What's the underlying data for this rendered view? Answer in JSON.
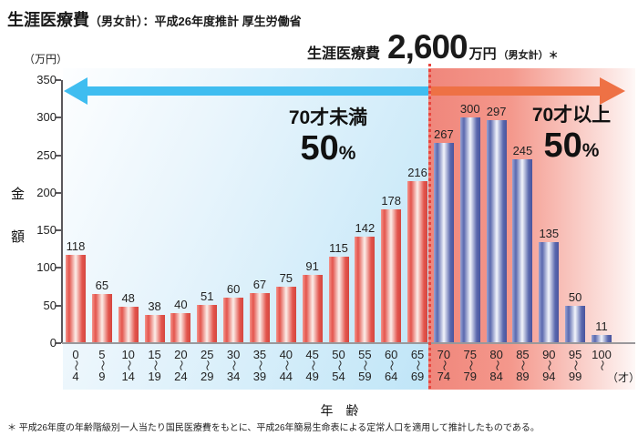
{
  "title": {
    "main": "生涯医療費",
    "sub": "（男女計）：平成26年度推計 厚生労働省"
  },
  "headline": {
    "label": "生涯医療費",
    "value": "2,600",
    "unit": "万円",
    "note": "（男女計）＊"
  },
  "y_axis": {
    "unit": "（万円）",
    "label_chars": [
      "金",
      "額"
    ],
    "ticks": [
      0,
      50,
      100,
      150,
      200,
      250,
      300,
      350
    ]
  },
  "x_axis": {
    "label": "年　齢",
    "unit": "（才）",
    "range_mark": "〜"
  },
  "annotations": {
    "left": {
      "line1": "70才未満",
      "pct": "50",
      "pct_sign": "%"
    },
    "right": {
      "line1": "70才以上",
      "pct": "50",
      "pct_sign": "%"
    }
  },
  "footnote": "＊ 平成26年度の年齢階級別一人当たり国民医療費をもとに、平成26年簡易生命表による定常人口を適用して推計したものである。",
  "colors": {
    "left_arrow": "#3fbdf0",
    "right_arrow": "#ee7145",
    "dotted_line": "#e8453e",
    "bar_under70": "#e3554d",
    "bar_over70": "#5a68ae",
    "bg_under70": "#bfe5f7",
    "bg_over70": "#f0867b"
  },
  "chart_data": {
    "type": "bar",
    "title": "生涯医療費（男女計）：平成26年度推計 厚生労働省",
    "xlabel": "年齢（才）",
    "ylabel": "金額（万円）",
    "ylim": [
      0,
      350
    ],
    "ytick_interval": 50,
    "grid": false,
    "legend_position": "none",
    "categories": [
      "0〜4",
      "5〜9",
      "10〜14",
      "15〜19",
      "20〜24",
      "25〜29",
      "30〜34",
      "35〜39",
      "40〜44",
      "45〜49",
      "50〜54",
      "55〜59",
      "60〜64",
      "65〜69",
      "70〜74",
      "75〜79",
      "80〜84",
      "85〜89",
      "90〜94",
      "95〜99",
      "100〜"
    ],
    "values": [
      118,
      65,
      48,
      38,
      40,
      51,
      60,
      67,
      75,
      91,
      115,
      142,
      178,
      216,
      267,
      300,
      297,
      245,
      135,
      50,
      11
    ],
    "groups": [
      {
        "name": "70才未満",
        "share": "50%",
        "category_count": 14,
        "color": "#e3554d"
      },
      {
        "name": "70才以上",
        "share": "50%",
        "category_count": 7,
        "color": "#5a68ae"
      }
    ],
    "headline_total": "生涯医療費 2,600万円（男女計）＊"
  }
}
